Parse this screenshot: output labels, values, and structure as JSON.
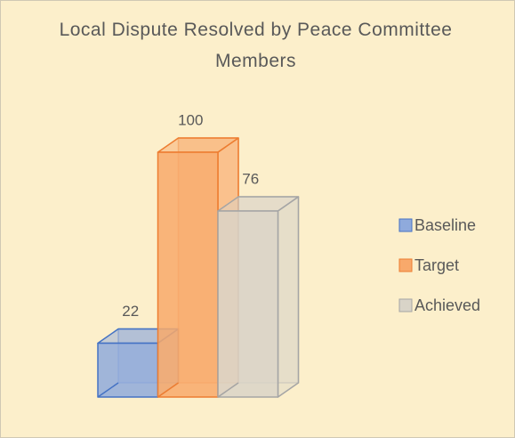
{
  "chart_data": {
    "type": "bar",
    "title": "Local Dispute Resolved by Peace Committee Members",
    "categories": [
      null
    ],
    "series": [
      {
        "name": "Baseline",
        "color": "#8faadc",
        "edge": "#4472c4",
        "values": [
          22
        ]
      },
      {
        "name": "Target",
        "color": "#f8a96b",
        "edge": "#ed7d31",
        "values": [
          100
        ]
      },
      {
        "name": "Achieved",
        "color": "#d9d4c8",
        "edge": "#a5a5a5",
        "values": [
          76
        ]
      }
    ],
    "legend": "right"
  }
}
